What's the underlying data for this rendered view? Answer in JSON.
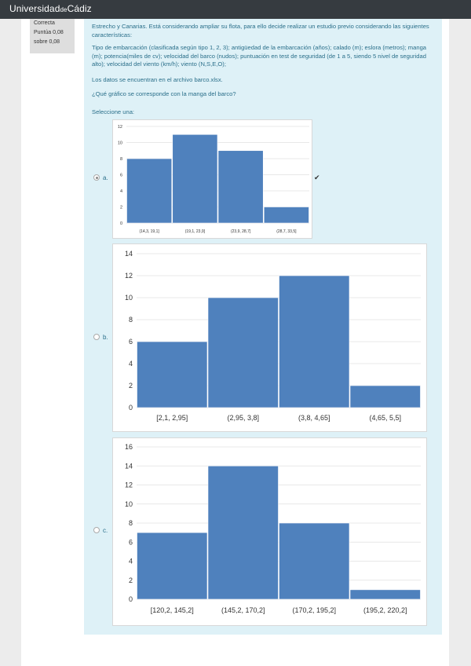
{
  "header": {
    "logo_main": "Universidad",
    "logo_de": "de",
    "logo_end": "Cádiz"
  },
  "info": {
    "status": "Correcta",
    "score": "Puntúa 0,08",
    "max": "sobre 0,08"
  },
  "question": {
    "intro": "Estrecho y Canarias. Está considerando ampliar su flota, para ello decide realizar un estudio previo considerando las siguientes características:",
    "variables": "Tipo de embarcación (clasificada según tipo 1, 2, 3); antigüedad de la embarcación (años); calado (m); eslora (metros); manga (m); potencia(miles de cv); velocidad del barco (nudos);  puntuación en test de seguridad (de 1 a 5, siendo 5 nivel de seguridad alto); velocidad del viento (km/h); viento (N,S,E,O);",
    "data_note": "Los datos se encuentran en el archivo barco.xlsx.",
    "prompt": "¿Qué gráfico se corresponde con la manga del barco?",
    "select_label": "Seleccione una:"
  },
  "options": [
    {
      "label": "a.",
      "selected": true,
      "correct_icon": "check-icon"
    },
    {
      "label": "b.",
      "selected": false
    },
    {
      "label": "c.",
      "selected": false
    }
  ],
  "colors": {
    "bar": "#4f81bd",
    "header": "#363b40",
    "question_bg": "#def1f7",
    "text_blue": "#2a6f8a"
  },
  "chart_data": [
    {
      "type": "bar",
      "categories": [
        "(14,3, 19,1]",
        "(19,1, 23,9]",
        "(23,9, 28,7]",
        "(28,7, 33,5]"
      ],
      "values": [
        8,
        11,
        9,
        2
      ],
      "yticks": [
        0,
        2,
        4,
        6,
        8,
        10,
        12
      ],
      "ylim": [
        0,
        12
      ]
    },
    {
      "type": "bar",
      "categories": [
        "[2,1, 2,95]",
        "(2,95, 3,8]",
        "(3,8, 4,65]",
        "(4,65, 5,5]"
      ],
      "values": [
        6,
        10,
        12,
        2
      ],
      "yticks": [
        0,
        2,
        4,
        6,
        8,
        10,
        12,
        14
      ],
      "ylim": [
        0,
        14
      ]
    },
    {
      "type": "bar",
      "categories": [
        "[120,2, 145,2]",
        "(145,2, 170,2]",
        "(170,2, 195,2]",
        "(195,2, 220,2]"
      ],
      "values": [
        7,
        14,
        8,
        1
      ],
      "yticks": [
        0,
        2,
        4,
        6,
        8,
        10,
        12,
        14,
        16
      ],
      "ylim": [
        0,
        16
      ]
    }
  ]
}
